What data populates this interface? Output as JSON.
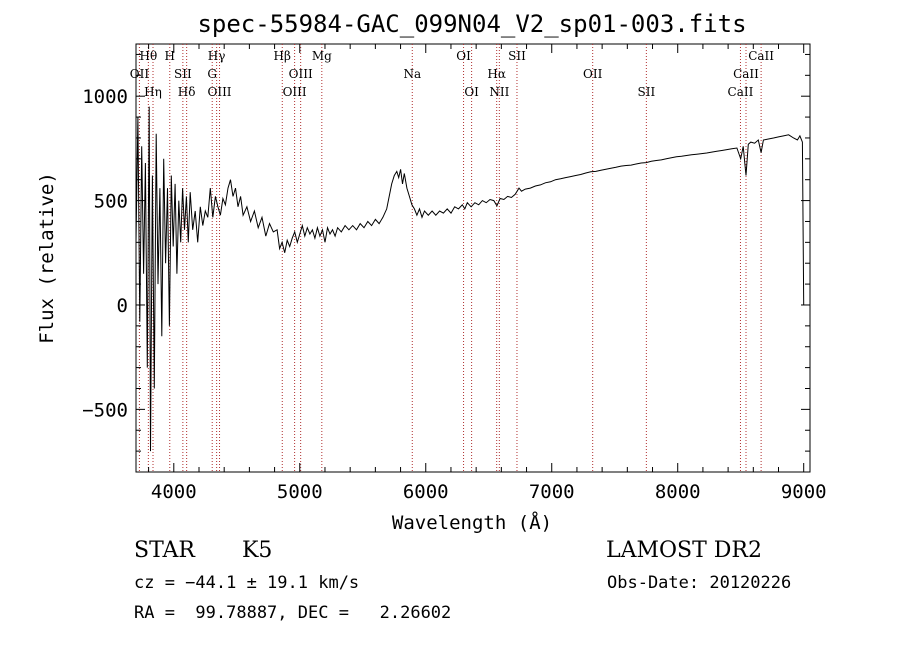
{
  "chart_data": {
    "type": "line",
    "title": "spec-55984-GAC_099N04_V2_sp01-003.fits",
    "xlabel": "Wavelength (Å)",
    "ylabel": "Flux (relative)",
    "xlim": [
      3700,
      9050
    ],
    "ylim": [
      -800,
      1250
    ],
    "x_ticks": [
      {
        "v": 4000,
        "label": "4000"
      },
      {
        "v": 5000,
        "label": "5000"
      },
      {
        "v": 6000,
        "label": "6000"
      },
      {
        "v": 7000,
        "label": "7000"
      },
      {
        "v": 8000,
        "label": "8000"
      },
      {
        "v": 9000,
        "label": "9000"
      }
    ],
    "y_ticks": [
      {
        "v": -500,
        "label": "−500"
      },
      {
        "v": 0,
        "label": "0"
      },
      {
        "v": 500,
        "label": "500"
      },
      {
        "v": 1000,
        "label": "1000"
      }
    ],
    "series": [
      {
        "values": [
          [
            3700,
            300
          ],
          [
            3715,
            900
          ],
          [
            3730,
            -80
          ],
          [
            3745,
            760
          ],
          [
            3760,
            150
          ],
          [
            3775,
            680
          ],
          [
            3790,
            -300
          ],
          [
            3805,
            950
          ],
          [
            3815,
            -700
          ],
          [
            3830,
            620
          ],
          [
            3845,
            -400
          ],
          [
            3860,
            820
          ],
          [
            3875,
            100
          ],
          [
            3890,
            560
          ],
          [
            3905,
            -150
          ],
          [
            3920,
            700
          ],
          [
            3935,
            200
          ],
          [
            3950,
            560
          ],
          [
            3965,
            -100
          ],
          [
            3980,
            620
          ],
          [
            3995,
            280
          ],
          [
            4010,
            580
          ],
          [
            4025,
            150
          ],
          [
            4040,
            500
          ],
          [
            4055,
            300
          ],
          [
            4070,
            560
          ],
          [
            4085,
            360
          ],
          [
            4100,
            520
          ],
          [
            4115,
            300
          ],
          [
            4130,
            540
          ],
          [
            4150,
            360
          ],
          [
            4170,
            450
          ],
          [
            4190,
            300
          ],
          [
            4210,
            470
          ],
          [
            4230,
            380
          ],
          [
            4250,
            450
          ],
          [
            4270,
            420
          ],
          [
            4290,
            560
          ],
          [
            4310,
            420
          ],
          [
            4330,
            520
          ],
          [
            4350,
            470
          ],
          [
            4370,
            430
          ],
          [
            4390,
            510
          ],
          [
            4410,
            480
          ],
          [
            4430,
            560
          ],
          [
            4450,
            600
          ],
          [
            4470,
            520
          ],
          [
            4490,
            560
          ],
          [
            4510,
            470
          ],
          [
            4530,
            520
          ],
          [
            4550,
            430
          ],
          [
            4580,
            470
          ],
          [
            4610,
            400
          ],
          [
            4640,
            450
          ],
          [
            4670,
            370
          ],
          [
            4700,
            420
          ],
          [
            4730,
            330
          ],
          [
            4760,
            390
          ],
          [
            4790,
            350
          ],
          [
            4820,
            360
          ],
          [
            4840,
            270
          ],
          [
            4860,
            300
          ],
          [
            4880,
            250
          ],
          [
            4900,
            310
          ],
          [
            4920,
            280
          ],
          [
            4940,
            320
          ],
          [
            4960,
            350
          ],
          [
            4980,
            300
          ],
          [
            5000,
            340
          ],
          [
            5020,
            380
          ],
          [
            5040,
            330
          ],
          [
            5060,
            370
          ],
          [
            5080,
            340
          ],
          [
            5100,
            360
          ],
          [
            5120,
            320
          ],
          [
            5140,
            370
          ],
          [
            5160,
            330
          ],
          [
            5180,
            360
          ],
          [
            5200,
            300
          ],
          [
            5220,
            370
          ],
          [
            5240,
            340
          ],
          [
            5260,
            360
          ],
          [
            5280,
            330
          ],
          [
            5300,
            370
          ],
          [
            5330,
            350
          ],
          [
            5360,
            380
          ],
          [
            5390,
            360
          ],
          [
            5420,
            380
          ],
          [
            5450,
            360
          ],
          [
            5480,
            390
          ],
          [
            5510,
            370
          ],
          [
            5540,
            400
          ],
          [
            5570,
            380
          ],
          [
            5600,
            410
          ],
          [
            5630,
            390
          ],
          [
            5660,
            420
          ],
          [
            5690,
            460
          ],
          [
            5710,
            520
          ],
          [
            5730,
            580
          ],
          [
            5750,
            620
          ],
          [
            5770,
            640
          ],
          [
            5785,
            610
          ],
          [
            5800,
            650
          ],
          [
            5815,
            580
          ],
          [
            5830,
            630
          ],
          [
            5850,
            560
          ],
          [
            5870,
            520
          ],
          [
            5890,
            480
          ],
          [
            5910,
            460
          ],
          [
            5930,
            430
          ],
          [
            5950,
            460
          ],
          [
            5970,
            420
          ],
          [
            5990,
            450
          ],
          [
            6020,
            430
          ],
          [
            6050,
            450
          ],
          [
            6080,
            430
          ],
          [
            6110,
            450
          ],
          [
            6140,
            440
          ],
          [
            6170,
            460
          ],
          [
            6200,
            440
          ],
          [
            6230,
            470
          ],
          [
            6260,
            460
          ],
          [
            6290,
            480
          ],
          [
            6310,
            460
          ],
          [
            6330,
            490
          ],
          [
            6360,
            470
          ],
          [
            6390,
            490
          ],
          [
            6420,
            480
          ],
          [
            6450,
            500
          ],
          [
            6480,
            490
          ],
          [
            6510,
            505
          ],
          [
            6540,
            500
          ],
          [
            6565,
            475
          ],
          [
            6590,
            510
          ],
          [
            6620,
            505
          ],
          [
            6650,
            520
          ],
          [
            6680,
            515
          ],
          [
            6710,
            530
          ],
          [
            6740,
            560
          ],
          [
            6760,
            545
          ],
          [
            6790,
            555
          ],
          [
            6830,
            560
          ],
          [
            6870,
            570
          ],
          [
            6910,
            575
          ],
          [
            6950,
            585
          ],
          [
            6990,
            590
          ],
          [
            7030,
            600
          ],
          [
            7070,
            605
          ],
          [
            7110,
            610
          ],
          [
            7150,
            615
          ],
          [
            7190,
            620
          ],
          [
            7230,
            625
          ],
          [
            7270,
            632
          ],
          [
            7310,
            638
          ],
          [
            7350,
            640
          ],
          [
            7390,
            645
          ],
          [
            7430,
            650
          ],
          [
            7470,
            655
          ],
          [
            7510,
            660
          ],
          [
            7550,
            665
          ],
          [
            7590,
            668
          ],
          [
            7630,
            670
          ],
          [
            7670,
            675
          ],
          [
            7710,
            680
          ],
          [
            7750,
            682
          ],
          [
            7790,
            688
          ],
          [
            7830,
            692
          ],
          [
            7870,
            695
          ],
          [
            7910,
            700
          ],
          [
            7950,
            705
          ],
          [
            7990,
            710
          ],
          [
            8030,
            712
          ],
          [
            8070,
            716
          ],
          [
            8110,
            720
          ],
          [
            8150,
            722
          ],
          [
            8190,
            725
          ],
          [
            8230,
            728
          ],
          [
            8270,
            732
          ],
          [
            8310,
            736
          ],
          [
            8350,
            740
          ],
          [
            8390,
            744
          ],
          [
            8430,
            748
          ],
          [
            8470,
            752
          ],
          [
            8500,
            700
          ],
          [
            8520,
            760
          ],
          [
            8542,
            620
          ],
          [
            8560,
            770
          ],
          [
            8580,
            780
          ],
          [
            8610,
            775
          ],
          [
            8640,
            790
          ],
          [
            8662,
            730
          ],
          [
            8680,
            790
          ],
          [
            8720,
            795
          ],
          [
            8760,
            800
          ],
          [
            8800,
            805
          ],
          [
            8840,
            810
          ],
          [
            8880,
            815
          ],
          [
            8920,
            800
          ],
          [
            8950,
            790
          ],
          [
            8970,
            810
          ],
          [
            8990,
            780
          ],
          [
            9000,
            0
          ]
        ]
      }
    ],
    "lines": [
      {
        "name": "Hθ",
        "x": 3798
      },
      {
        "name": "OII",
        "x": 3727
      },
      {
        "name": "Hη",
        "x": 3835
      },
      {
        "name": "H",
        "x": 3968
      },
      {
        "name": "SII",
        "x": 4072
      },
      {
        "name": "Hδ",
        "x": 4102
      },
      {
        "name": "Hγ",
        "x": 4340
      },
      {
        "name": "G",
        "x": 4305
      },
      {
        "name": "OIII",
        "x": 4363
      },
      {
        "name": "Hβ",
        "x": 4861
      },
      {
        "name": "OIII",
        "x": 5007
      },
      {
        "name": "OIII",
        "x": 4959
      },
      {
        "name": "Mg",
        "x": 5175
      },
      {
        "name": "Na",
        "x": 5893
      },
      {
        "name": "OI",
        "x": 6364
      },
      {
        "name": "OI",
        "x": 6300
      },
      {
        "name": "Hα",
        "x": 6563
      },
      {
        "name": "NII",
        "x": 6584
      },
      {
        "name": "SII",
        "x": 6724
      },
      {
        "name": "OII",
        "x": 7325
      },
      {
        "name": "SII",
        "x": 7751
      },
      {
        "name": "CaII",
        "x": 8662
      },
      {
        "name": "CaII",
        "x": 8542
      },
      {
        "name": "CaII",
        "x": 8498
      }
    ]
  },
  "info": {
    "class": "STAR",
    "subclass": "K5",
    "survey": "LAMOST DR2",
    "cz": "cz = −44.1 ± 19.1 km/s",
    "obs_date": "Obs-Date: 20120226",
    "coords": "RA =  99.78887, DEC =   2.26602"
  }
}
